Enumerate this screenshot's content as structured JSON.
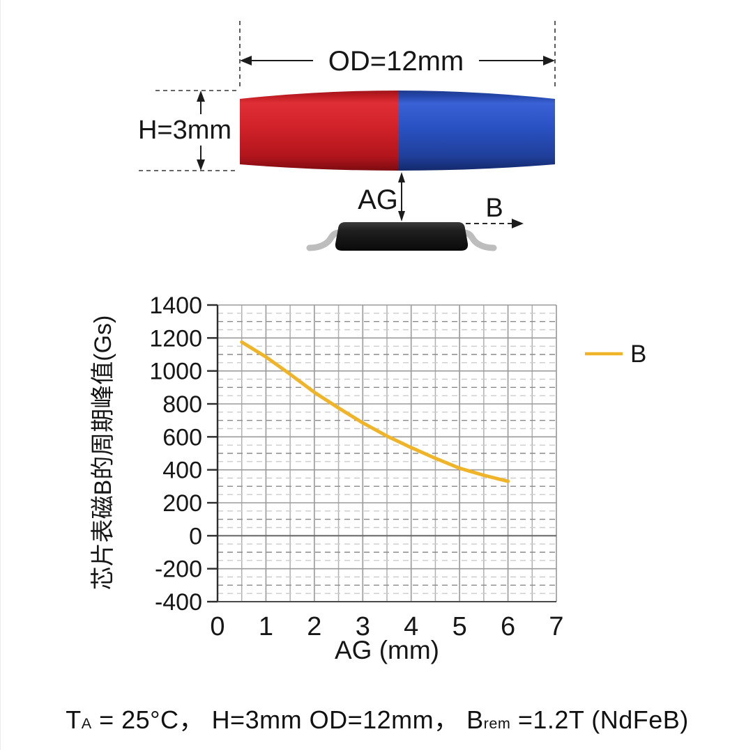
{
  "diagram": {
    "od_label": "OD=12mm",
    "h_label": "H=3mm",
    "ag_label": "AG",
    "b_label": "B",
    "magnet_red_color": "#d2222a",
    "magnet_blue_color": "#2a52c4",
    "chip_color": "#141414",
    "lead_color": "#bdbdbd"
  },
  "chart_data": {
    "type": "line",
    "title": "",
    "xlabel": "AG (mm)",
    "ylabel": "芯片表磁B的周期峰值(Gs)",
    "xlim": [
      0,
      7
    ],
    "ylim": [
      -400,
      1400
    ],
    "x_major_step": 1,
    "x_minor_step": 0.5,
    "y_major_step": 200,
    "y_minor_step": 50,
    "grid": true,
    "legend_position": "right",
    "series": [
      {
        "name": "B",
        "color": "#F0B428",
        "x": [
          0.5,
          1,
          1.5,
          2,
          2.5,
          3,
          3.5,
          4,
          4.5,
          5,
          5.5,
          6
        ],
        "y": [
          1175,
          1085,
          980,
          870,
          775,
          685,
          605,
          535,
          470,
          410,
          367,
          330
        ]
      }
    ]
  },
  "caption": {
    "t_symbol": "T",
    "t_sub": "A",
    "t_value": " = 25°C， ",
    "mid": "H=3mm OD=12mm， ",
    "b_symbol": "B",
    "b_sub": "rem",
    "b_value": " =1.2T (NdFeB)"
  }
}
